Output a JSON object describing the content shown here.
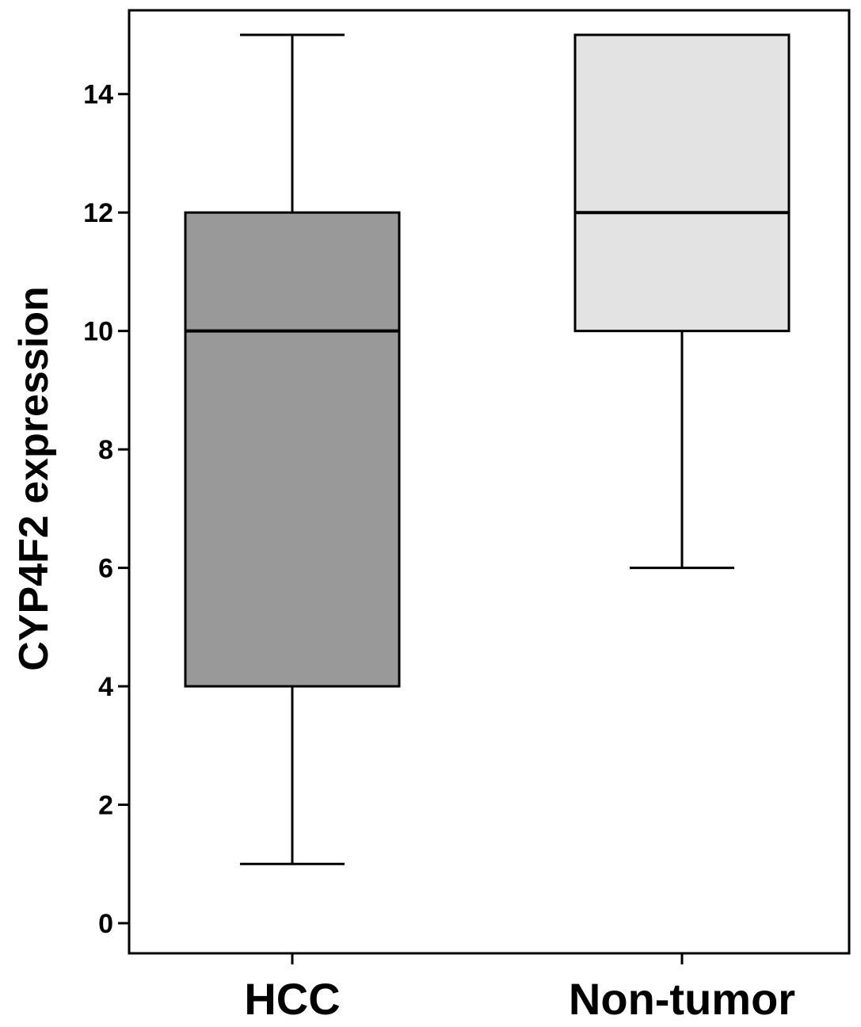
{
  "chart_data": {
    "type": "boxplot",
    "title": "",
    "xlabel": "",
    "ylabel": "CYP4F2 expression",
    "ylim": [
      -0.5,
      15.4
    ],
    "yticks": [
      "0",
      "2",
      "4",
      "6",
      "8",
      "10",
      "12",
      "14"
    ],
    "grid": false,
    "legend": "none",
    "categories": [
      "HCC",
      "Non-tumor"
    ],
    "boxes": [
      {
        "category": "HCC",
        "min": 1,
        "q1": 4,
        "median": 10,
        "q3": 12,
        "max": 15,
        "color": "#999999"
      },
      {
        "category": "Non-tumor",
        "min": 6,
        "q1": 10,
        "median": 12,
        "q3": 15,
        "max": 15,
        "color": "#e3e3e3"
      }
    ]
  }
}
